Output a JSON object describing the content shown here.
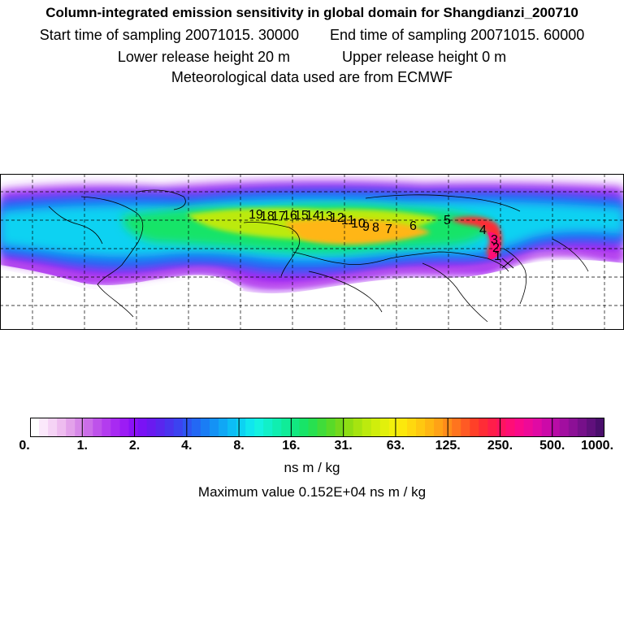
{
  "header": {
    "title": "Column-integrated emission sensitivity in global domain for Shangdianzi_200710",
    "start_time": "Start time of sampling 20071015. 30000",
    "end_time": "End time of sampling 20071015. 60000",
    "lower_release": "Lower release height   20 m",
    "upper_release": "Upper release height    0 m",
    "met_data": "Meteorological data used are from ECMWF"
  },
  "map": {
    "trajectory_labels": [
      "19",
      "18",
      "17",
      "16",
      "15",
      "14",
      "13",
      "12",
      "11",
      "10",
      "9",
      "8",
      "7",
      "6",
      "5",
      "4",
      "3",
      "2",
      "1"
    ],
    "colors": {
      "land_outline": "#000000",
      "grid": "#000000",
      "no_data": "#ffffff"
    }
  },
  "colorbar": {
    "tick_labels": [
      "0.",
      "1.",
      "2.",
      "4.",
      "8.",
      "16.",
      "31.",
      "63.",
      "125.",
      "250.",
      "500.",
      "1000."
    ],
    "colors": [
      "#ffffff",
      "#fbe8fb",
      "#f5d3f5",
      "#eebcef",
      "#e3a2ea",
      "#d788e8",
      "#cb6de8",
      "#be52ea",
      "#b33cee",
      "#a82af2",
      "#9c1cf5",
      "#8b12f7",
      "#7a12f5",
      "#6a1af0",
      "#5a26ee",
      "#4a34ee",
      "#3c43f0",
      "#2e55f2",
      "#2368f4",
      "#1a7df5",
      "#1492f5",
      "#10a7f5",
      "#0dbdf5",
      "#0dd2f2",
      "#10e6ee",
      "#14f2e0",
      "#12f0c8",
      "#10eeb0",
      "#10ec98",
      "#12e880",
      "#18e468",
      "#28e050",
      "#40dc3a",
      "#58da28",
      "#74d81c",
      "#8ede14",
      "#a6e410",
      "#bcea0e",
      "#d0ee0c",
      "#e2f00c",
      "#f2f00c",
      "#fce80c",
      "#ffd80e",
      "#ffc810",
      "#ffb612",
      "#ffa216",
      "#ff8c1a",
      "#ff741e",
      "#ff5a24",
      "#ff4028",
      "#ff2c36",
      "#ff1e4a",
      "#ff1460",
      "#ff0e76",
      "#fa0a8a",
      "#ee0a98",
      "#e00aa4",
      "#cc0aa8",
      "#b80ca6",
      "#a20ea0",
      "#8c1096",
      "#76108a",
      "#60107c",
      "#4a0e6c"
    ],
    "unit": "ns m / kg",
    "max_value": "Maximum value  0.152E+04 ns m / kg"
  }
}
